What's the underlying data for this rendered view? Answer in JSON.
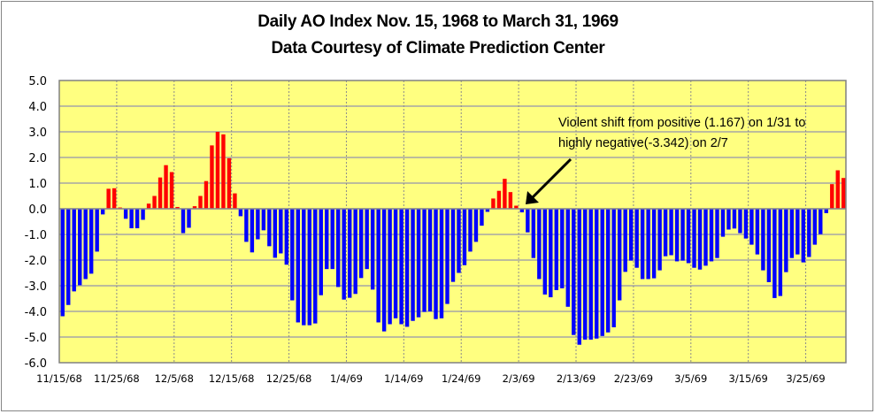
{
  "chart_data": {
    "type": "bar",
    "title": "Daily AO Index Nov. 15, 1968 to March 31, 1969",
    "subtitle": "Data Courtesy of Climate Prediction Center",
    "xlabel": "",
    "ylabel": "",
    "ylim": [
      -6.0,
      5.0
    ],
    "ytick_step": 1.0,
    "y_tick_labels": [
      "5.0",
      "4.0",
      "3.0",
      "2.0",
      "1.0",
      "0.0",
      "-1.0",
      "-2.0",
      "-3.0",
      "-4.0",
      "-5.0",
      "-6.0"
    ],
    "x_start": "11/15/68",
    "x_end": "3/31/69",
    "x_tick_interval_days": 10,
    "x_tick_labels": [
      "11/15/68",
      "11/25/68",
      "12/5/68",
      "12/15/68",
      "12/25/68",
      "1/4/69",
      "1/14/69",
      "1/24/69",
      "2/3/69",
      "2/13/69",
      "2/23/69",
      "3/5/69",
      "3/15/69",
      "3/25/69"
    ],
    "grid": true,
    "positive_color": "#ff0000",
    "negative_color": "#0000ff",
    "plot_background": "#ffff80",
    "values": [
      -4.19,
      -3.75,
      -3.22,
      -2.98,
      -2.74,
      -2.53,
      -1.67,
      -0.22,
      0.78,
      0.8,
      0.05,
      -0.39,
      -0.76,
      -0.76,
      -0.43,
      0.2,
      0.5,
      1.22,
      1.7,
      1.43,
      0.07,
      -0.95,
      -0.74,
      0.1,
      0.5,
      1.08,
      2.47,
      3.0,
      2.9,
      1.97,
      0.6,
      -0.29,
      -1.29,
      -1.7,
      -1.19,
      -0.84,
      -1.46,
      -1.91,
      -1.74,
      -2.18,
      -3.57,
      -4.43,
      -4.54,
      -4.54,
      -4.47,
      -3.37,
      -2.35,
      -2.35,
      -3.05,
      -3.54,
      -3.47,
      -3.32,
      -2.7,
      -2.35,
      -3.15,
      -4.43,
      -4.78,
      -4.5,
      -4.27,
      -4.5,
      -4.6,
      -4.37,
      -4.23,
      -4.02,
      -4.0,
      -4.3,
      -4.27,
      -3.71,
      -2.85,
      -2.5,
      -2.2,
      -1.67,
      -1.29,
      -0.66,
      -0.12,
      0.4,
      0.7,
      1.167,
      0.65,
      0.12,
      -0.14,
      -0.92,
      -1.92,
      -2.74,
      -3.342,
      -3.45,
      -3.17,
      -3.1,
      -3.82,
      -4.92,
      -5.3,
      -5.1,
      -5.1,
      -5.06,
      -4.96,
      -4.82,
      -4.62,
      -3.57,
      -2.46,
      -2.02,
      -2.3,
      -2.74,
      -2.74,
      -2.71,
      -2.4,
      -1.85,
      -1.81,
      -2.05,
      -2.02,
      -2.12,
      -2.3,
      -2.37,
      -2.22,
      -2.05,
      -1.92,
      -1.09,
      -0.81,
      -0.77,
      -0.95,
      -1.16,
      -1.4,
      -1.78,
      -2.4,
      -2.86,
      -3.48,
      -3.4,
      -2.47,
      -1.92,
      -1.78,
      -2.09,
      -1.88,
      -1.4,
      -0.99,
      -0.17,
      0.96,
      1.5,
      1.2
    ],
    "annotation": {
      "lines": [
        "Violent shift from positive (1.167) on 1/31 to",
        "highly negative(-3.342) on 2/7"
      ],
      "arrow_points_to": "2/3/69"
    }
  }
}
